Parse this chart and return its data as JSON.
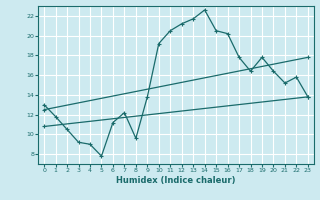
{
  "xlabel": "Humidex (Indice chaleur)",
  "bg_color": "#cdeaf0",
  "grid_color": "#ffffff",
  "line_color": "#1a6b6b",
  "xlim": [
    -0.5,
    23.5
  ],
  "ylim": [
    7,
    23
  ],
  "xticks": [
    0,
    1,
    2,
    3,
    4,
    5,
    6,
    7,
    8,
    9,
    10,
    11,
    12,
    13,
    14,
    15,
    16,
    17,
    18,
    19,
    20,
    21,
    22,
    23
  ],
  "yticks": [
    8,
    10,
    12,
    14,
    16,
    18,
    20,
    22
  ],
  "line1_x": [
    0,
    1,
    2,
    3,
    4,
    5,
    6,
    7,
    8,
    9,
    10,
    11,
    12,
    13,
    14,
    15,
    16,
    17,
    18,
    19,
    20,
    21,
    22,
    23
  ],
  "line1_y": [
    13.0,
    11.8,
    10.5,
    9.2,
    9.0,
    7.8,
    11.2,
    12.2,
    9.6,
    13.8,
    19.2,
    20.5,
    21.2,
    21.7,
    22.6,
    20.5,
    20.2,
    17.8,
    16.4,
    17.8,
    16.4,
    15.2,
    15.8,
    13.8
  ],
  "line2_x": [
    0,
    23
  ],
  "line2_y": [
    12.5,
    17.8
  ],
  "line3_x": [
    0,
    23
  ],
  "line3_y": [
    10.8,
    13.8
  ]
}
